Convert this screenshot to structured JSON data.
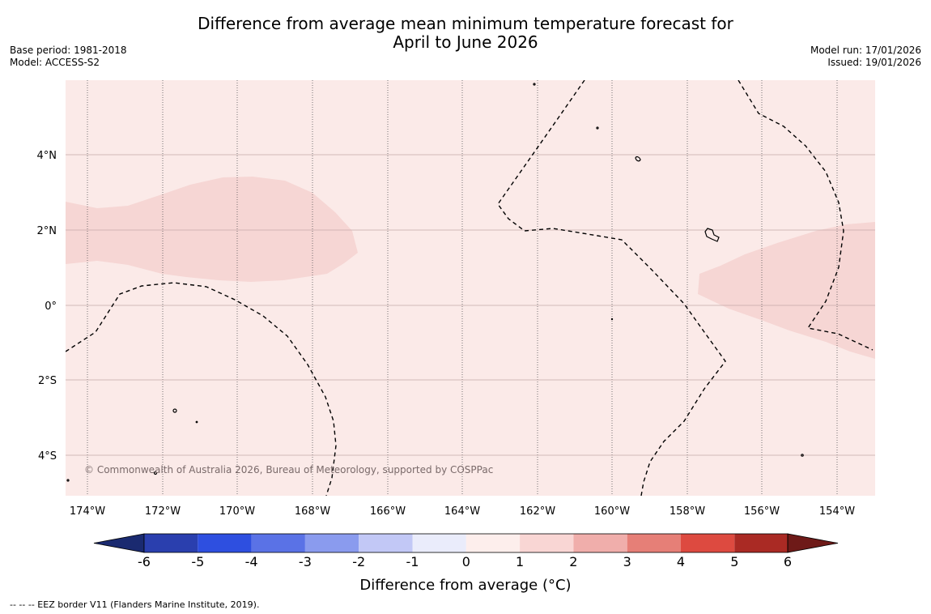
{
  "title": {
    "line1": "Difference from average mean minimum temperature forecast for",
    "line2": "April to June 2026"
  },
  "meta_left": {
    "base_period": "Base period: 1981-2018",
    "model": "Model: ACCESS-S2"
  },
  "meta_right": {
    "model_run": "Model run: 17/01/2026",
    "issued": "Issued: 19/01/2026"
  },
  "map": {
    "copyright": "© Commonwealth of Australia 2026, Bureau of Meteorology, supported by COSPPac",
    "lon_labels": [
      "174°W",
      "172°W",
      "170°W",
      "168°W",
      "166°W",
      "164°W",
      "162°W",
      "160°W",
      "158°W",
      "156°W",
      "154°W"
    ],
    "lat_labels": [
      "4°N",
      "2°N",
      "0°",
      "2°S",
      "4°S"
    ],
    "background_color": "#fbeae8",
    "anomaly_color": "#f6d6d4"
  },
  "colorbar": {
    "title": "Difference from average (°C)",
    "ticks": [
      "-6",
      "-5",
      "-4",
      "-3",
      "-2",
      "-1",
      "0",
      "1",
      "2",
      "3",
      "4",
      "5",
      "6"
    ],
    "colors": [
      "#1a2a70",
      "#2a3fae",
      "#2e4fe0",
      "#5a72e6",
      "#8a9bee",
      "#c2c8f6",
      "#eaecfb",
      "#fdeeec",
      "#f9d6d4",
      "#f0aeab",
      "#e67f77",
      "#dd4a40",
      "#aa2a24",
      "#6e1a18"
    ]
  },
  "footnote": "--  --  -- EEZ border V11 (Flanders Marine Institute, 2019)."
}
